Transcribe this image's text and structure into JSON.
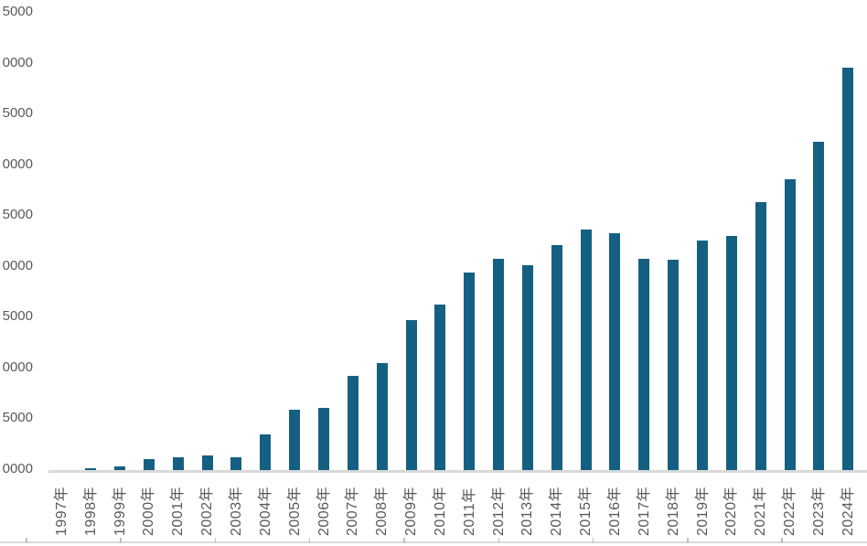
{
  "chart_data": {
    "type": "bar",
    "title": "",
    "xlabel": "",
    "ylabel": "",
    "categories": [
      "1997年",
      "1998年",
      "1999年",
      "2000年",
      "2001年",
      "2002年",
      "2003年",
      "2004年",
      "2005年",
      "2006年",
      "2007年",
      "2008年",
      "2009年",
      "2010年",
      "2011年",
      "2012年",
      "2013年",
      "2014年",
      "2015年",
      "2016年",
      "2017年",
      "2018年",
      "2019年",
      "2020年",
      "2021年",
      "2022年",
      "2023年",
      "2024年"
    ],
    "values": [
      10000,
      10150,
      10350,
      11100,
      11300,
      11400,
      11300,
      13500,
      15950,
      16100,
      19250,
      20500,
      24750,
      26250,
      29450,
      30800,
      30150,
      32100,
      33650,
      33350,
      30800,
      30700,
      32550,
      33050,
      36400,
      38650,
      42350,
      49600
    ],
    "series_color": "#156082",
    "legend": "none",
    "grid": "off",
    "y_axis": {
      "min": 10000,
      "max": 55000,
      "step": 5000,
      "labels_cropped_at_left": true,
      "tick_labels_visible": [
        "5000",
        "0000",
        "5000",
        "0000",
        "5000",
        "0000",
        "5000",
        "0000",
        "5000",
        "0000"
      ]
    }
  },
  "colors": {
    "bar": "#156082",
    "axis_line": "#d9d9d9",
    "text": "#595959",
    "sheet_line": "#d9d9d9",
    "sheet_tick": "#bfbfbf"
  },
  "decor": {
    "sheet_tick_count": 9,
    "sheet_tick_start_x": 28,
    "sheet_tick_spacing": 103.3
  }
}
